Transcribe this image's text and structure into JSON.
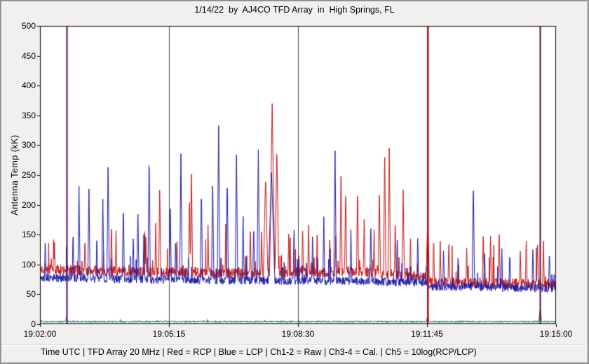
{
  "window": {
    "bg": "#f1f0ee",
    "frame": "#919191"
  },
  "header": {
    "title": "1/14/22  by  AJ4CO TFD Array  in  High Springs, FL"
  },
  "footer": {
    "status": "Time UTC | TFD Array 20 MHz | Red = RCP | Blue = LCP | Ch1-2 = Raw | Ch3-4 = Cal. | Ch5 = 10log(RCP/LCP)"
  },
  "chart_data": {
    "type": "line",
    "title": "1/14/22 by AJ4CO TFD Array in High Springs, FL",
    "xlabel": "Time UTC",
    "ylabel": "Antenna Temp (kK)",
    "ylim": [
      0,
      500
    ],
    "y_ticks": [
      0,
      50,
      100,
      150,
      200,
      250,
      300,
      350,
      400,
      450,
      500
    ],
    "x_ticks": [
      "19:02:00",
      "19:05:15",
      "19:08:30",
      "19:11:45",
      "19:15:00"
    ],
    "x_start": "19:02:00",
    "x_end": "19:15:00",
    "duration_s": 780,
    "grid": "vertical-only",
    "plot_bg": "#ffffff",
    "grid_color": "#4a4a4a",
    "series": [
      {
        "name": "RCP (Ch1-2 Raw)",
        "color": "#c41414",
        "baseline": [
          [
            0,
            92
          ],
          [
            120,
            88
          ],
          [
            300,
            86
          ],
          [
            480,
            88
          ],
          [
            560,
            82
          ],
          [
            583,
            78
          ],
          [
            592,
            70
          ],
          [
            700,
            68
          ],
          [
            780,
            66
          ]
        ],
        "noise": {
          "sd": 9,
          "rate": 0.05,
          "max": 75
        },
        "spikes": [
          [
            22,
            140
          ],
          [
            68,
            150
          ],
          [
            108,
            175
          ],
          [
            115,
            160
          ],
          [
            160,
            152
          ],
          [
            175,
            170
          ],
          [
            181,
            238
          ],
          [
            207,
            150
          ],
          [
            226,
            222
          ],
          [
            229,
            265
          ],
          [
            254,
            167
          ],
          [
            281,
            182
          ],
          [
            318,
            165
          ],
          [
            335,
            160
          ],
          [
            341,
            250,
            5
          ],
          [
            351,
            370,
            5
          ],
          [
            358,
            298,
            4
          ],
          [
            376,
            160
          ],
          [
            397,
            168
          ],
          [
            406,
            172
          ],
          [
            419,
            165
          ],
          [
            438,
            155
          ],
          [
            447,
            150
          ],
          [
            455,
            265
          ],
          [
            462,
            228
          ],
          [
            480,
            232
          ],
          [
            490,
            180
          ],
          [
            505,
            162
          ],
          [
            513,
            230
          ],
          [
            521,
            296
          ],
          [
            528,
            300
          ],
          [
            537,
            182
          ],
          [
            549,
            232
          ],
          [
            560,
            152
          ],
          [
            586,
            180,
            4
          ],
          [
            595,
            150
          ],
          [
            605,
            140
          ],
          [
            618,
            142
          ],
          [
            645,
            130
          ],
          [
            670,
            158
          ],
          [
            681,
            150
          ],
          [
            694,
            163
          ],
          [
            726,
            128
          ],
          [
            735,
            148
          ],
          [
            752,
            145
          ],
          [
            761,
            140
          ]
        ]
      },
      {
        "name": "LCP (Ch1-2 Raw)",
        "color": "#1c1caa",
        "baseline": [
          [
            0,
            78
          ],
          [
            200,
            74
          ],
          [
            480,
            72
          ],
          [
            583,
            70
          ],
          [
            592,
            63
          ],
          [
            780,
            60
          ]
        ],
        "noise": {
          "sd": 7,
          "rate": 0.04,
          "max": 65
        },
        "spikes": [
          [
            8,
            148
          ],
          [
            50,
            160
          ],
          [
            59,
            232
          ],
          [
            74,
            236
          ],
          [
            86,
            152
          ],
          [
            95,
            215
          ],
          [
            103,
            278
          ],
          [
            126,
            205
          ],
          [
            141,
            150
          ],
          [
            148,
            200
          ],
          [
            157,
            152
          ],
          [
            165,
            292
          ],
          [
            197,
            197
          ],
          [
            205,
            150
          ],
          [
            213,
            290
          ],
          [
            244,
            232
          ],
          [
            261,
            250
          ],
          [
            270,
            343
          ],
          [
            283,
            252
          ],
          [
            297,
            297
          ],
          [
            307,
            190
          ],
          [
            323,
            170
          ],
          [
            330,
            297
          ],
          [
            350,
            255,
            7
          ],
          [
            384,
            168
          ],
          [
            412,
            150
          ],
          [
            429,
            180
          ],
          [
            446,
            298
          ],
          [
            470,
            162
          ],
          [
            500,
            172
          ],
          [
            540,
            150
          ],
          [
            571,
            152
          ],
          [
            610,
            130
          ],
          [
            632,
            120
          ],
          [
            655,
            243
          ],
          [
            672,
            130
          ],
          [
            698,
            132
          ],
          [
            710,
            122
          ],
          [
            745,
            130
          ],
          [
            770,
            126
          ]
        ]
      },
      {
        "name": "Ch5 10log(RCP/LCP)",
        "color": "#0b6e60",
        "baseline": [
          [
            0,
            4
          ],
          [
            780,
            4
          ]
        ],
        "noise": {
          "sd": 1.2,
          "rate": 0.02,
          "max": 5
        },
        "spikes": [
          [
            40,
            11
          ],
          [
            190,
            7
          ],
          [
            586,
            16
          ],
          [
            756,
            26
          ]
        ]
      }
    ],
    "events": [
      {
        "t": 40,
        "color": "#5a0a5a",
        "top": 500,
        "width": 2,
        "name": "full-height-line-19:02:40"
      },
      {
        "t": 586,
        "color": "#c40000",
        "top": 500,
        "width": 2,
        "name": "saturated-red-burst-19:11:46"
      },
      {
        "t": 756,
        "color": "#5c0a3e",
        "top": 500,
        "width": 2,
        "name": "full-height-line-19:14:36"
      }
    ]
  }
}
